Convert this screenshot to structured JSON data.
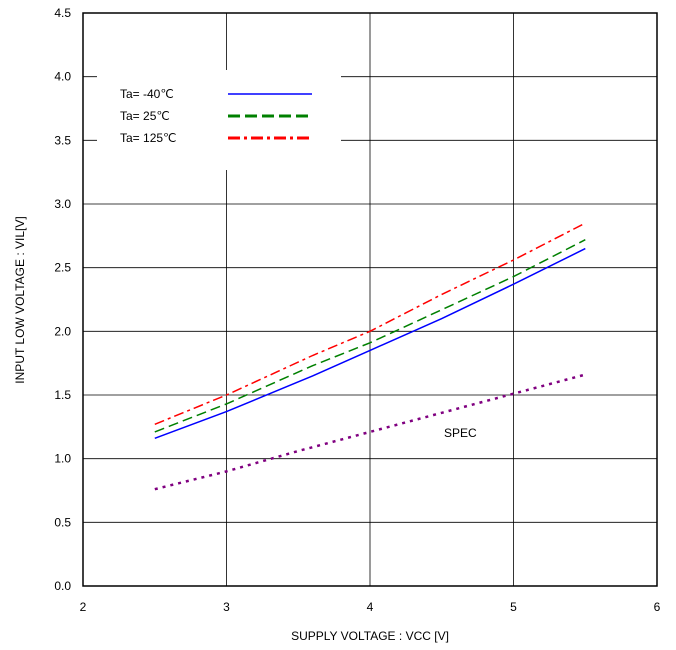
{
  "chart_data": {
    "type": "line",
    "xlabel": "SUPPLY VOLTAGE : VCC [V]",
    "ylabel": "INPUT LOW VOLTAGE : VIL[V]",
    "xlim": [
      2,
      6
    ],
    "ylim": [
      0.0,
      4.5
    ],
    "x_ticks": [
      "2",
      "3",
      "4",
      "5",
      "6"
    ],
    "y_ticks": [
      "0.0",
      "0.5",
      "1.0",
      "1.5",
      "2.0",
      "2.5",
      "3.0",
      "3.5",
      "4.0",
      "4.5"
    ],
    "grid": true,
    "legend_position": "top-left",
    "series": [
      {
        "name": "Ta= -40℃",
        "color": "#0000ff",
        "dash": "solid",
        "x": [
          2.5,
          3.0,
          3.6,
          4.0,
          4.5,
          5.0,
          5.5
        ],
        "y": [
          1.16,
          1.37,
          1.65,
          1.85,
          2.1,
          2.37,
          2.65
        ]
      },
      {
        "name": "Ta=  25℃",
        "color": "#008000",
        "dash": "dashed",
        "x": [
          2.5,
          3.0,
          3.6,
          4.0,
          4.5,
          5.0,
          5.5
        ],
        "y": [
          1.21,
          1.43,
          1.73,
          1.91,
          2.17,
          2.43,
          2.72
        ]
      },
      {
        "name": "Ta= 125℃",
        "color": "#ff0000",
        "dash": "dashdot",
        "x": [
          2.5,
          3.0,
          3.6,
          4.0,
          4.5,
          5.0,
          5.5
        ],
        "y": [
          1.27,
          1.5,
          1.81,
          2.0,
          2.29,
          2.56,
          2.85
        ]
      },
      {
        "name": "SPEC",
        "color": "#800080",
        "dash": "dotted",
        "x": [
          2.5,
          3.0,
          3.5,
          4.0,
          4.5,
          5.0,
          5.5
        ],
        "y": [
          0.76,
          0.9,
          1.06,
          1.21,
          1.36,
          1.51,
          1.66
        ]
      }
    ],
    "annotations": [
      {
        "text": "SPEC",
        "x": 4.63,
        "y": 1.2,
        "color": "#800080"
      }
    ]
  }
}
